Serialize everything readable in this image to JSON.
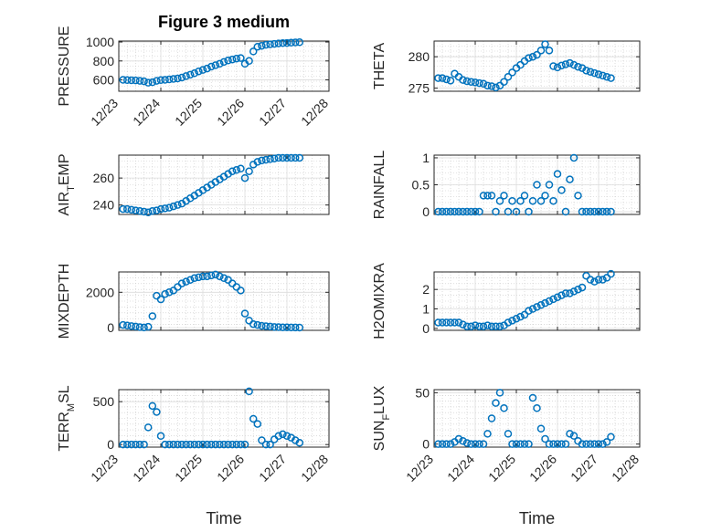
{
  "figure": {
    "title": "Figure 3 medium",
    "marker_color": "#0072bd"
  },
  "chart_data": [
    {
      "type": "scatter",
      "ylabel": "PRESSURE",
      "ylim": [
        480,
        1010
      ],
      "yticks": [
        600,
        800,
        1000
      ],
      "xlim": [
        0,
        5
      ],
      "xticks": [
        "12/23",
        "12/24",
        "12/25",
        "12/26",
        "12/27",
        "12/28"
      ],
      "xlabel": "",
      "grid": true,
      "series": [
        {
          "x": [
            0.1,
            0.2,
            0.3,
            0.4,
            0.5,
            0.6,
            0.7,
            0.8,
            0.9,
            1.0,
            1.1,
            1.2,
            1.3,
            1.4,
            1.5,
            1.6,
            1.7,
            1.8,
            1.9,
            2.0,
            2.1,
            2.2,
            2.3,
            2.4,
            2.5,
            2.6,
            2.7,
            2.8,
            2.9,
            3.0,
            3.1,
            3.2,
            3.3,
            3.4,
            3.5,
            3.6,
            3.7,
            3.8,
            3.9,
            4.0,
            4.1,
            4.2,
            4.3
          ],
          "y": [
            600,
            598,
            596,
            594,
            590,
            585,
            570,
            575,
            590,
            598,
            600,
            605,
            610,
            615,
            625,
            640,
            655,
            670,
            690,
            705,
            720,
            740,
            755,
            770,
            790,
            805,
            815,
            825,
            830,
            770,
            800,
            900,
            950,
            960,
            970,
            975,
            980,
            985,
            988,
            990,
            993,
            995,
            998
          ]
        }
      ]
    },
    {
      "type": "scatter",
      "ylabel": "THETA",
      "ylim": [
        274.5,
        282.5
      ],
      "yticks": [
        275,
        280
      ],
      "xlim": [
        0,
        5
      ],
      "xticks": [],
      "xlabel": "",
      "grid": true,
      "series": [
        {
          "x": [
            0.1,
            0.2,
            0.3,
            0.4,
            0.5,
            0.6,
            0.7,
            0.8,
            0.9,
            1.0,
            1.1,
            1.2,
            1.3,
            1.4,
            1.5,
            1.6,
            1.7,
            1.8,
            1.9,
            2.0,
            2.1,
            2.2,
            2.3,
            2.4,
            2.5,
            2.6,
            2.7,
            2.8,
            2.9,
            3.0,
            3.1,
            3.2,
            3.3,
            3.4,
            3.5,
            3.6,
            3.7,
            3.8,
            3.9,
            4.0,
            4.1,
            4.2,
            4.3
          ],
          "y": [
            276.6,
            276.6,
            276.4,
            276.2,
            277.3,
            276.8,
            276.3,
            276.1,
            276.0,
            275.9,
            275.8,
            275.7,
            275.4,
            275.3,
            275.1,
            275.4,
            276.0,
            276.8,
            277.5,
            278.2,
            278.7,
            279.3,
            279.8,
            280.0,
            280.3,
            281.0,
            282.0,
            281.0,
            278.5,
            278.3,
            278.6,
            278.8,
            279.0,
            278.7,
            278.4,
            278.2,
            277.8,
            277.6,
            277.4,
            277.2,
            277.0,
            276.8,
            276.6
          ]
        }
      ]
    },
    {
      "type": "scatter",
      "ylabel": "AIR_TEMP",
      "ylim": [
        233,
        277
      ],
      "yticks": [
        240,
        260
      ],
      "xlim": [
        0,
        5
      ],
      "xticks": [],
      "xlabel": "",
      "grid": true,
      "series": [
        {
          "x": [
            0.1,
            0.2,
            0.3,
            0.4,
            0.5,
            0.6,
            0.7,
            0.8,
            0.9,
            1.0,
            1.1,
            1.2,
            1.3,
            1.4,
            1.5,
            1.6,
            1.7,
            1.8,
            1.9,
            2.0,
            2.1,
            2.2,
            2.3,
            2.4,
            2.5,
            2.6,
            2.7,
            2.8,
            2.9,
            3.0,
            3.1,
            3.2,
            3.3,
            3.4,
            3.5,
            3.6,
            3.7,
            3.8,
            3.9,
            4.0,
            4.1,
            4.2,
            4.3
          ],
          "y": [
            237,
            237,
            236.5,
            236,
            235.5,
            235,
            234.5,
            235.5,
            236,
            237,
            237.5,
            238,
            239,
            240,
            241,
            243,
            245,
            247,
            249,
            251,
            253,
            255,
            257,
            259,
            261,
            263,
            265,
            266,
            267,
            260,
            265,
            270,
            272,
            273,
            273.5,
            274,
            274.5,
            275,
            275,
            275,
            275,
            275,
            275
          ]
        }
      ]
    },
    {
      "type": "scatter",
      "ylabel": "RAINFALL",
      "ylim": [
        -0.05,
        1.05
      ],
      "yticks": [
        0,
        0.5,
        1
      ],
      "xlim": [
        0,
        5
      ],
      "xticks": [],
      "xlabel": "",
      "grid": true,
      "series": [
        {
          "x": [
            0.1,
            0.2,
            0.3,
            0.4,
            0.5,
            0.6,
            0.7,
            0.8,
            0.9,
            1.0,
            1.1,
            1.2,
            1.3,
            1.4,
            1.5,
            1.6,
            1.7,
            1.8,
            1.9,
            2.0,
            2.1,
            2.2,
            2.3,
            2.4,
            2.5,
            2.6,
            2.7,
            2.8,
            2.9,
            3.0,
            3.1,
            3.2,
            3.3,
            3.4,
            3.5,
            3.6,
            3.7,
            3.8,
            3.9,
            4.0,
            4.1,
            4.2,
            4.3
          ],
          "y": [
            0,
            0,
            0,
            0,
            0,
            0,
            0,
            0,
            0,
            0,
            0,
            0.3,
            0.3,
            0.3,
            0,
            0.2,
            0.3,
            0,
            0.2,
            0,
            0.2,
            0.3,
            0,
            0.2,
            0.5,
            0.2,
            0.3,
            0.5,
            0.2,
            0.7,
            0.4,
            0,
            0.6,
            1.0,
            0.3,
            0,
            0,
            0,
            0,
            0,
            0,
            0,
            0
          ]
        }
      ]
    },
    {
      "type": "scatter",
      "ylabel": "MIXDEPTH",
      "ylim": [
        -150,
        3150
      ],
      "yticks": [
        0,
        2000
      ],
      "xlim": [
        0,
        5
      ],
      "xticks": [],
      "xlabel": "",
      "grid": true,
      "series": [
        {
          "x": [
            0.1,
            0.2,
            0.3,
            0.4,
            0.5,
            0.6,
            0.7,
            0.8,
            0.9,
            1.0,
            1.1,
            1.2,
            1.3,
            1.4,
            1.5,
            1.6,
            1.7,
            1.8,
            1.9,
            2.0,
            2.1,
            2.2,
            2.3,
            2.4,
            2.5,
            2.6,
            2.7,
            2.8,
            2.9,
            3.0,
            3.1,
            3.2,
            3.3,
            3.4,
            3.5,
            3.6,
            3.7,
            3.8,
            3.9,
            4.0,
            4.1,
            4.2,
            4.3
          ],
          "y": [
            150,
            120,
            90,
            60,
            30,
            10,
            50,
            650,
            1800,
            1600,
            1900,
            2000,
            2100,
            2300,
            2500,
            2600,
            2700,
            2800,
            2850,
            2900,
            2900,
            2950,
            3000,
            2900,
            2800,
            2700,
            2500,
            2300,
            2100,
            800,
            400,
            200,
            150,
            100,
            80,
            60,
            40,
            30,
            20,
            15,
            10,
            8,
            5
          ]
        }
      ]
    },
    {
      "type": "scatter",
      "ylabel": "H2OMIXRA",
      "ylim": [
        -0.1,
        2.9
      ],
      "yticks": [
        0,
        1,
        2
      ],
      "xlim": [
        0,
        5
      ],
      "xticks": [],
      "xlabel": "",
      "grid": true,
      "series": [
        {
          "x": [
            0.1,
            0.2,
            0.3,
            0.4,
            0.5,
            0.6,
            0.7,
            0.8,
            0.9,
            1.0,
            1.1,
            1.2,
            1.3,
            1.4,
            1.5,
            1.6,
            1.7,
            1.8,
            1.9,
            2.0,
            2.1,
            2.2,
            2.3,
            2.4,
            2.5,
            2.6,
            2.7,
            2.8,
            2.9,
            3.0,
            3.1,
            3.2,
            3.3,
            3.4,
            3.5,
            3.6,
            3.7,
            3.8,
            3.9,
            4.0,
            4.1,
            4.2,
            4.3
          ],
          "y": [
            0.3,
            0.3,
            0.3,
            0.3,
            0.3,
            0.3,
            0.2,
            0.1,
            0.1,
            0.15,
            0.1,
            0.1,
            0.15,
            0.1,
            0.1,
            0.1,
            0.15,
            0.3,
            0.4,
            0.5,
            0.6,
            0.7,
            0.9,
            1.0,
            1.1,
            1.2,
            1.3,
            1.4,
            1.5,
            1.6,
            1.7,
            1.8,
            1.8,
            1.9,
            2.0,
            2.1,
            2.7,
            2.5,
            2.4,
            2.5,
            2.5,
            2.6,
            2.8
          ]
        }
      ]
    },
    {
      "type": "scatter",
      "ylabel": "TERR_MSL",
      "ylim": [
        -30,
        640
      ],
      "yticks": [
        0,
        500
      ],
      "xlim": [
        0,
        5
      ],
      "xticks": [
        "12/23",
        "12/24",
        "12/25",
        "12/26",
        "12/27",
        "12/28"
      ],
      "xlabel": "Time",
      "grid": true,
      "series": [
        {
          "x": [
            0.1,
            0.2,
            0.3,
            0.4,
            0.5,
            0.6,
            0.7,
            0.8,
            0.9,
            1.0,
            1.1,
            1.2,
            1.3,
            1.4,
            1.5,
            1.6,
            1.7,
            1.8,
            1.9,
            2.0,
            2.1,
            2.2,
            2.3,
            2.4,
            2.5,
            2.6,
            2.7,
            2.8,
            2.9,
            3.0,
            3.1,
            3.2,
            3.3,
            3.4,
            3.5,
            3.6,
            3.7,
            3.8,
            3.9,
            4.0,
            4.1,
            4.2,
            4.3
          ],
          "y": [
            0,
            0,
            0,
            0,
            0,
            0,
            200,
            450,
            380,
            100,
            0,
            0,
            0,
            0,
            0,
            0,
            0,
            0,
            0,
            0,
            0,
            0,
            0,
            0,
            0,
            0,
            0,
            0,
            0,
            0,
            620,
            300,
            240,
            50,
            0,
            0,
            60,
            100,
            120,
            100,
            80,
            50,
            20
          ]
        }
      ]
    },
    {
      "type": "scatter",
      "ylabel": "SUN_FLUX",
      "ylim": [
        -3,
        53
      ],
      "yticks": [
        0,
        50
      ],
      "xlim": [
        0,
        5
      ],
      "xticks": [
        "12/23",
        "12/24",
        "12/25",
        "12/26",
        "12/27",
        "12/28"
      ],
      "xlabel": "Time",
      "grid": true,
      "series": [
        {
          "x": [
            0.1,
            0.2,
            0.3,
            0.4,
            0.5,
            0.6,
            0.7,
            0.8,
            0.9,
            1.0,
            1.1,
            1.2,
            1.3,
            1.4,
            1.5,
            1.6,
            1.7,
            1.8,
            1.9,
            2.0,
            2.1,
            2.2,
            2.3,
            2.4,
            2.5,
            2.6,
            2.7,
            2.8,
            2.9,
            3.0,
            3.1,
            3.2,
            3.3,
            3.4,
            3.5,
            3.6,
            3.7,
            3.8,
            3.9,
            4.0,
            4.1,
            4.2,
            4.3
          ],
          "y": [
            0,
            0,
            0,
            0,
            2,
            5,
            3,
            1,
            0,
            0,
            0,
            0,
            10,
            25,
            40,
            50,
            35,
            10,
            0,
            0,
            0,
            0,
            0,
            45,
            35,
            15,
            5,
            0,
            0,
            0,
            0,
            0,
            10,
            8,
            3,
            0,
            0,
            0,
            0,
            0,
            0,
            2,
            7
          ]
        }
      ]
    }
  ]
}
